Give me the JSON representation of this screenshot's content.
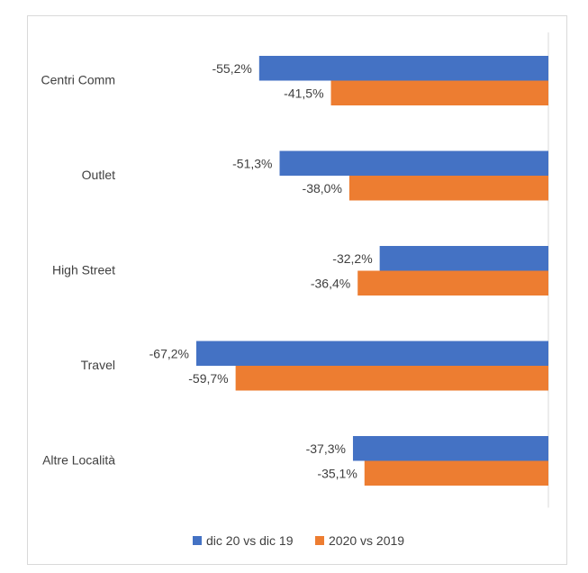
{
  "chart_data": {
    "type": "bar",
    "orientation": "horizontal",
    "categories": [
      "Centri Comm",
      "Outlet",
      "High Street",
      "Travel",
      "Altre Località"
    ],
    "series": [
      {
        "name": "dic 20 vs dic 19",
        "values": [
          -55.2,
          -51.3,
          -32.2,
          -67.2,
          -37.3
        ],
        "labels": [
          "-55,2%",
          "-51,3%",
          "-32,2%",
          "-67,2%",
          "-37,3%"
        ],
        "color": "#4472C4"
      },
      {
        "name": "2020 vs 2019",
        "values": [
          -41.5,
          -38.0,
          -36.4,
          -59.7,
          -35.1
        ],
        "labels": [
          "-41,5%",
          "-38,0%",
          "-36,4%",
          "-59,7%",
          "-35,1%"
        ],
        "color": "#ED7D31"
      }
    ],
    "title": "",
    "xlabel": "",
    "ylabel": "",
    "xlim": [
      -70,
      0
    ],
    "grid": false,
    "legend": "bottom"
  }
}
